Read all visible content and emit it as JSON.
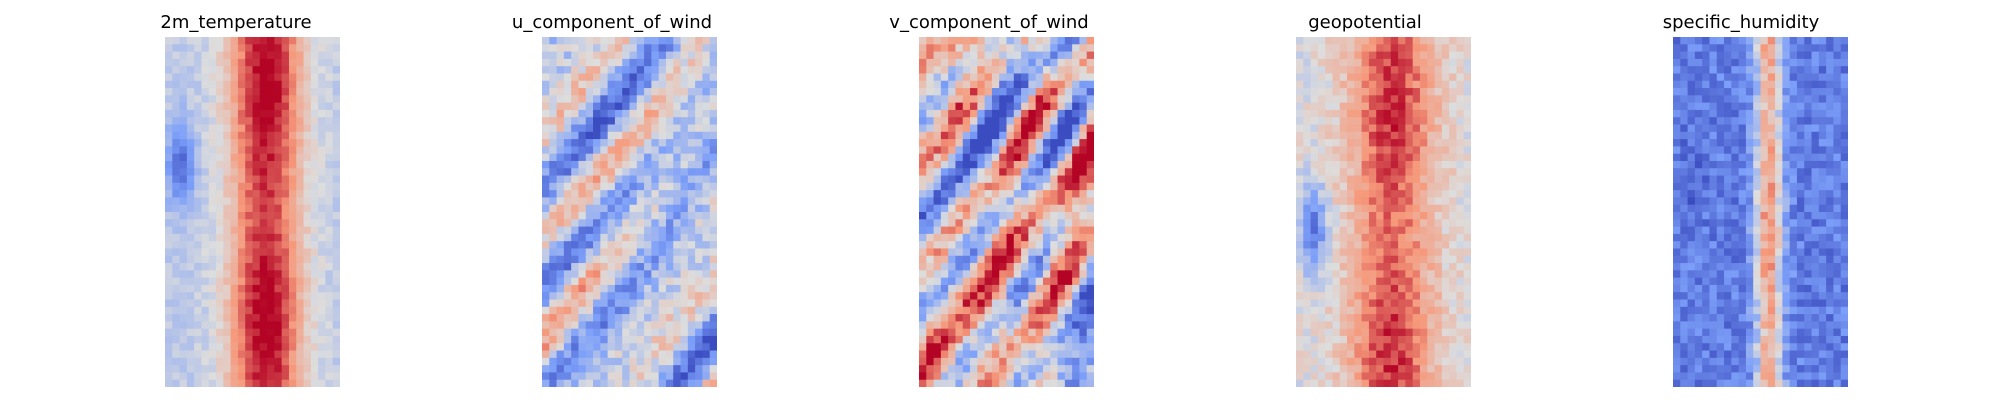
{
  "chart_data": [
    {
      "type": "heatmap",
      "title": "2m_temperature",
      "colormap": "coolwarm",
      "axes": "off",
      "grid_shape": [
        48,
        24
      ],
      "pattern": {
        "kind": "band",
        "mean": 0.65,
        "band_center": 0.58,
        "band_width": 0.32,
        "band_peak": 0.97,
        "edge_value": 0.42,
        "noise": 0.05,
        "cold_spot": {
          "col": 0.07,
          "row": 0.36,
          "value": 0.1
        }
      }
    },
    {
      "type": "heatmap",
      "title": "u_component_of_wind",
      "colormap": "coolwarm",
      "axes": "off",
      "grid_shape": [
        48,
        24
      ],
      "pattern": {
        "kind": "turbulent",
        "mean": 0.4,
        "amplitude": 0.35,
        "noise": 0.12
      }
    },
    {
      "type": "heatmap",
      "title": "v_component_of_wind",
      "colormap": "coolwarm",
      "axes": "off",
      "grid_shape": [
        48,
        24
      ],
      "pattern": {
        "kind": "turbulent",
        "mean": 0.52,
        "amplitude": 0.38,
        "noise": 0.14
      }
    },
    {
      "type": "heatmap",
      "title": "geopotential",
      "colormap": "coolwarm",
      "axes": "off",
      "grid_shape": [
        48,
        24
      ],
      "pattern": {
        "kind": "band",
        "mean": 0.7,
        "band_center": 0.55,
        "band_width": 0.36,
        "band_peak": 0.88,
        "edge_value": 0.5,
        "noise": 0.08,
        "cold_spot": {
          "col": 0.08,
          "row": 0.55,
          "value": 0.12
        }
      }
    },
    {
      "type": "heatmap",
      "title": "specific_humidity",
      "colormap": "coolwarm",
      "axes": "off",
      "grid_shape": [
        48,
        24
      ],
      "pattern": {
        "kind": "band",
        "mean": 0.3,
        "band_center": 0.55,
        "band_width": 0.12,
        "band_peak": 0.72,
        "edge_value": 0.15,
        "noise": 0.1,
        "cold_spot": {
          "col": 0.1,
          "row": 0.4,
          "value": 0.05
        }
      }
    }
  ]
}
